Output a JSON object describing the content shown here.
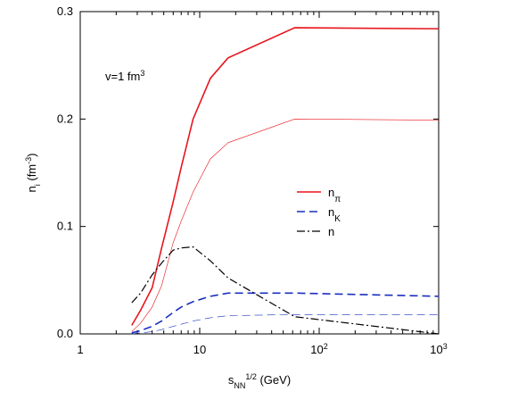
{
  "chart_data": {
    "type": "line",
    "annotation": [
      {
        "text": "v=1 fm"
      },
      {
        "text": "3",
        "style": "sup"
      }
    ],
    "xlabel": [
      {
        "text": "s"
      },
      {
        "text": "NN",
        "style": "sub"
      },
      {
        "text": "1/2",
        "style": "sup"
      },
      {
        "text": " (GeV)"
      }
    ],
    "ylabel": [
      {
        "text": "n"
      },
      {
        "text": "i",
        "style": "sub"
      },
      {
        "text": " (fm"
      },
      {
        "text": "-3",
        "style": "sup"
      },
      {
        "text": ")"
      }
    ],
    "xscale": "log",
    "xlim": [
      1,
      1000
    ],
    "xticks": [
      1,
      10,
      {
        "value": 100,
        "label": "10",
        "sup": "2"
      },
      {
        "value": 1000,
        "label": "10",
        "sup": "3"
      }
    ],
    "ylim": [
      0,
      0.3
    ],
    "yticks": [
      {
        "value": 0,
        "label": "0.0"
      },
      0.1,
      0.2,
      0.3
    ],
    "x": [
      2.7,
      3.2,
      4,
      4.8,
      6,
      7,
      8.8,
      12.3,
      17.3,
      62.4,
      1000
    ],
    "series": [
      {
        "name": "n",
        "name_sub": "π",
        "color": "#e8141c",
        "width": 1.6,
        "dash": "solid",
        "values": [
          0.008,
          0.022,
          0.043,
          0.08,
          0.123,
          0.155,
          0.2,
          0.238,
          0.257,
          0.285,
          0.284
        ]
      },
      {
        "color": "#e8141c",
        "width": 0.6,
        "dash": "solid",
        "values": [
          0.002,
          0.01,
          0.025,
          0.045,
          0.085,
          0.105,
          0.132,
          0.163,
          0.178,
          0.2,
          0.199
        ]
      },
      {
        "name": "n",
        "name_sub": "K",
        "color": "#1a2fc0",
        "width": 1.6,
        "dash": "dashed",
        "values": [
          0.001,
          0.003,
          0.007,
          0.012,
          0.02,
          0.025,
          0.03,
          0.035,
          0.038,
          0.038,
          0.035
        ]
      },
      {
        "color": "#1a2fc0",
        "width": 0.6,
        "dash": "dashed",
        "values": [
          0,
          0.001,
          0.002,
          0.004,
          0.007,
          0.009,
          0.012,
          0.015,
          0.017,
          0.018,
          0.018
        ]
      },
      {
        "name": "n",
        "color": "#000000",
        "width": 1.2,
        "dash": "dashdot",
        "values": [
          0.029,
          0.038,
          0.055,
          0.066,
          0.078,
          0.08,
          0.081,
          0.068,
          0.052,
          0.016,
          0
        ]
      }
    ]
  }
}
